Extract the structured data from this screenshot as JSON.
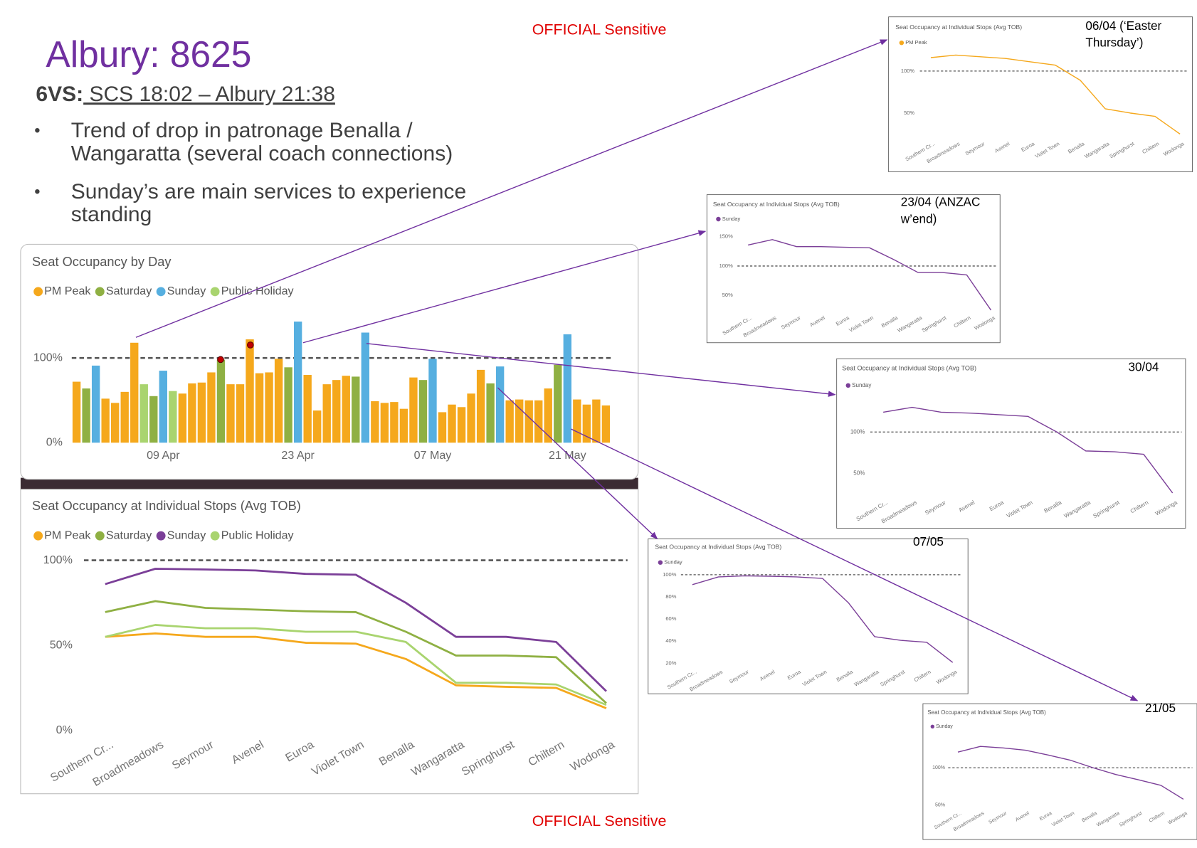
{
  "slide": {
    "title": "Albury: 8625",
    "service_code": "6VS:",
    "service_route": " SCS 18:02 – Albury 21:38",
    "bullets": [
      "Trend of drop in patronage Benalla / Wangaratta (several coach connections)",
      "Sunday’s are main services to experience standing"
    ],
    "classification": "OFFICIAL Sensitive"
  },
  "chart_data": [
    {
      "type": "bar",
      "title": "Seat Occupancy by Day",
      "categories": [
        null,
        null,
        null,
        null,
        null,
        null,
        null,
        null,
        null,
        "09 Apr",
        null,
        null,
        null,
        null,
        null,
        null,
        null,
        null,
        null,
        null,
        null,
        null,
        null,
        "23 Apr",
        null,
        null,
        null,
        null,
        null,
        null,
        null,
        null,
        null,
        null,
        null,
        null,
        null,
        "07 May",
        null,
        null,
        null,
        null,
        null,
        null,
        null,
        null,
        null,
        null,
        null,
        null,
        null,
        "21 May",
        null,
        null,
        null,
        null
      ],
      "series": [
        {
          "name": "PM Peak",
          "color": "#f5a81c",
          "values": [
            72,
            null,
            null,
            52,
            47,
            60,
            118,
            null,
            null,
            null,
            null,
            58,
            70,
            71,
            83,
            null,
            69,
            69,
            122,
            82,
            83,
            99,
            null,
            null,
            80,
            38,
            69,
            74,
            79,
            null,
            null,
            49,
            47,
            48,
            40,
            77,
            null,
            null,
            36,
            45,
            42,
            58,
            86,
            null,
            null,
            50,
            51,
            50,
            50,
            64,
            null,
            null,
            51,
            45,
            51,
            44
          ]
        },
        {
          "name": "Saturday",
          "color": "#8fb043",
          "values": [
            null,
            64,
            null,
            null,
            null,
            null,
            null,
            null,
            55,
            null,
            null,
            null,
            null,
            null,
            null,
            98,
            null,
            null,
            null,
            null,
            null,
            null,
            89,
            null,
            null,
            null,
            null,
            null,
            null,
            78,
            null,
            null,
            null,
            null,
            null,
            null,
            74,
            null,
            null,
            null,
            null,
            null,
            null,
            70,
            null,
            null,
            null,
            null,
            null,
            null,
            92,
            null,
            null,
            null,
            null,
            null
          ]
        },
        {
          "name": "Sunday",
          "color": "#56afe0",
          "values": [
            null,
            null,
            91,
            null,
            null,
            null,
            null,
            null,
            null,
            85,
            null,
            null,
            null,
            null,
            null,
            null,
            null,
            null,
            null,
            null,
            null,
            null,
            null,
            143,
            null,
            null,
            null,
            null,
            null,
            null,
            130,
            null,
            null,
            null,
            null,
            null,
            null,
            99,
            null,
            null,
            null,
            null,
            null,
            null,
            90,
            null,
            null,
            null,
            null,
            null,
            null,
            128,
            null,
            null,
            null,
            null
          ]
        },
        {
          "name": "Public Holiday",
          "color": "#a9d46f",
          "values": [
            null,
            null,
            null,
            null,
            null,
            null,
            null,
            69,
            null,
            null,
            61,
            null,
            null,
            null,
            null,
            null,
            null,
            null,
            null,
            null,
            null,
            null,
            null,
            null,
            null,
            null,
            null,
            null,
            null,
            null,
            null,
            null,
            null,
            null,
            null,
            null,
            null,
            null,
            null,
            null,
            null,
            null,
            null,
            null,
            null,
            null,
            null,
            null,
            null,
            null,
            null,
            null,
            null,
            null,
            null,
            null
          ]
        }
      ],
      "ylim": [
        0,
        150
      ],
      "yticks": [
        {
          "value": 0,
          "label": "0%"
        },
        {
          "value": 100,
          "label": "100%"
        }
      ],
      "reference_line": 100
    },
    {
      "type": "line",
      "title": "Seat Occupancy at Individual Stops (Avg TOB)",
      "categories": [
        "Southern Cr...",
        "Broadmeadows",
        "Seymour",
        "Avenel",
        "Euroa",
        "Violet Town",
        "Benalla",
        "Wangaratta",
        "Springhurst",
        "Chiltern",
        "Wodonga"
      ],
      "series": [
        {
          "name": "PM Peak",
          "color": "#f5a81c",
          "values": [
            55,
            57,
            55,
            55,
            51.5,
            51,
            42,
            26.5,
            25.6,
            25,
            13
          ]
        },
        {
          "name": "Saturday",
          "color": "#8fb043",
          "values": [
            69.5,
            76,
            72,
            71,
            70,
            69.5,
            58,
            44,
            44,
            43,
            16
          ]
        },
        {
          "name": "Sunday",
          "color": "#7b3f98",
          "values": [
            86,
            95,
            94.6,
            94,
            92,
            91.5,
            75,
            55,
            55,
            52,
            23
          ]
        },
        {
          "name": "Public Holiday",
          "color": "#a9d46f",
          "values": [
            55,
            62,
            60,
            60,
            58,
            58,
            52,
            28,
            28,
            27,
            15
          ]
        }
      ],
      "ylim": [
        0,
        105
      ],
      "yticks": [
        {
          "value": 0,
          "label": "0%"
        },
        {
          "value": 50,
          "label": "50%"
        },
        {
          "value": 100,
          "label": "100%"
        }
      ],
      "reference_line": 100
    },
    {
      "type": "line",
      "title": "Seat Occupancy at Individual Stops (Avg TOB)",
      "annotation": "06/04 (‘Easter Thursday’)",
      "categories": [
        "Southern Cr...",
        "Broadmeadows",
        "Seymour",
        "Avenel",
        "Euroa",
        "Violet Town",
        "Benalla",
        "Wangaratta",
        "Springhurst",
        "Chiltern",
        "Wodonga"
      ],
      "series": [
        {
          "name": "PM Peak",
          "color": "#f5a81c",
          "values": [
            116,
            119,
            117,
            115,
            111,
            107,
            89,
            55,
            50,
            46,
            25
          ]
        }
      ],
      "ylim": [
        20,
        125
      ],
      "yticks": [
        {
          "value": 50,
          "label": "50%"
        },
        {
          "value": 100,
          "label": "100%"
        }
      ],
      "reference_line": 100
    },
    {
      "type": "line",
      "title": "Seat Occupancy at Individual Stops (Avg TOB)",
      "annotation": "23/04 (ANZAC w’end)",
      "categories": [
        "Southern Cr...",
        "Broadmeadows",
        "Seymour",
        "Avenel",
        "Euroa",
        "Violet Town",
        "Benalla",
        "Wangaratta",
        "Springhurst",
        "Chiltern",
        "Wodonga"
      ],
      "series": [
        {
          "name": "Sunday",
          "color": "#7b3f98",
          "values": [
            135.7,
            145,
            133,
            133,
            132,
            131,
            111,
            89,
            89,
            85,
            25
          ]
        }
      ],
      "ylim": [
        20,
        160
      ],
      "yticks": [
        {
          "value": 50,
          "label": "50%"
        },
        {
          "value": 100,
          "label": "100%"
        },
        {
          "value": 150,
          "label": "150%"
        }
      ],
      "reference_line": 100
    },
    {
      "type": "line",
      "title": "Seat Occupancy at Individual Stops (Avg TOB)",
      "annotation": "30/04",
      "categories": [
        "Southern Cr...",
        "Broadmeadows",
        "Seymour",
        "Avenel",
        "Euroa",
        "Violet Town",
        "Benalla",
        "Wangaratta",
        "Springhurst",
        "Chiltern",
        "Wodonga"
      ],
      "series": [
        {
          "name": "Sunday",
          "color": "#7b3f98",
          "values": [
            124,
            130,
            124,
            123,
            121,
            119,
            100,
            77,
            76,
            73,
            26
          ]
        }
      ],
      "ylim": [
        20,
        140
      ],
      "yticks": [
        {
          "value": 50,
          "label": "50%"
        },
        {
          "value": 100,
          "label": "100%"
        }
      ],
      "reference_line": 100
    },
    {
      "type": "line",
      "title": "Seat Occupancy at Individual Stops (Avg TOB)",
      "annotation": "07/05",
      "categories": [
        "Southern Cr...",
        "Broadmeadows",
        "Seymour",
        "Avenel",
        "Euroa",
        "Violet Town",
        "Benalla",
        "Wangaratta",
        "Springhurst",
        "Chiltern",
        "Wodonga"
      ],
      "series": [
        {
          "name": "Sunday",
          "color": "#7b3f98",
          "values": [
            91,
            98,
            99,
            98.6,
            98,
            96.6,
            74.5,
            44,
            40.7,
            39,
            20.7
          ]
        }
      ],
      "ylim": [
        15,
        105
      ],
      "yticks": [
        {
          "value": 20,
          "label": "20%"
        },
        {
          "value": 40,
          "label": "40%"
        },
        {
          "value": 60,
          "label": "60%"
        },
        {
          "value": 80,
          "label": "80%"
        },
        {
          "value": 100,
          "label": "100%"
        }
      ],
      "reference_line": 100
    },
    {
      "type": "line",
      "title": "Seat Occupancy at Individual Stops (Avg TOB)",
      "annotation": "21/05",
      "categories": [
        "Southern Cr...",
        "Broadmeadows",
        "Seymour",
        "Avenel",
        "Euroa",
        "Violet Town",
        "Benalla",
        "Wangaratta",
        "Springhurst",
        "Chiltern",
        "Wodonga"
      ],
      "series": [
        {
          "name": "Sunday",
          "color": "#7b3f98",
          "values": [
            121,
            128.6,
            126.5,
            123.5,
            117,
            110,
            100,
            91,
            84,
            76.5,
            58
          ]
        }
      ],
      "ylim": [
        45,
        135
      ],
      "yticks": [
        {
          "value": 50,
          "label": "50%"
        },
        {
          "value": 100,
          "label": "100%"
        }
      ],
      "reference_line": 100
    }
  ]
}
